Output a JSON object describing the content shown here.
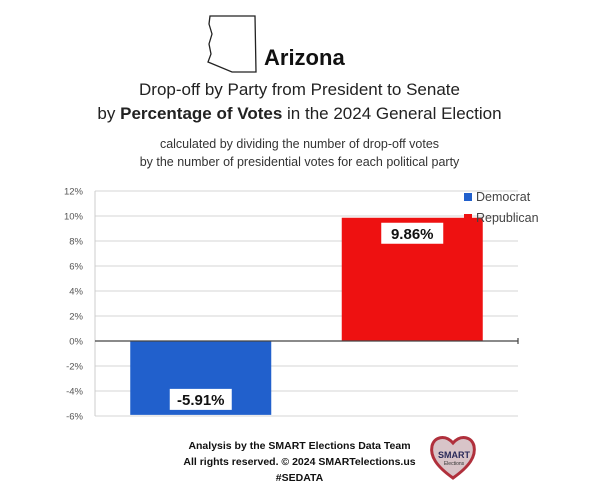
{
  "header": {
    "state": "Arizona",
    "title_line1": "Drop-off by Party from President to Senate",
    "title_line2_prefix": "by ",
    "title_line2_bold": "Percentage of Votes",
    "title_line2_suffix": " in the 2024 General Election",
    "subtitle_line1": "calculated by dividing the number of drop-off votes",
    "subtitle_line2": "by the number of presidential votes for each political party"
  },
  "chart_data": {
    "type": "bar",
    "categories": [
      "Democrat",
      "Republican"
    ],
    "values": [
      -5.91,
      9.86
    ],
    "data_labels": [
      "-5.91%",
      "9.86%"
    ],
    "colors": [
      "#2160cc",
      "#ee1111"
    ],
    "ylim": [
      -6,
      12
    ],
    "yticks": [
      -6,
      -4,
      -2,
      0,
      2,
      4,
      6,
      8,
      10,
      12
    ],
    "ytick_labels": [
      "-6%",
      "-4%",
      "-2%",
      "0%",
      "2%",
      "4%",
      "6%",
      "8%",
      "10%",
      "12%"
    ],
    "grid": true,
    "legend_position": "top-right",
    "legend": [
      "Democrat",
      "Republican"
    ]
  },
  "footer": {
    "line1": "Analysis by the SMART Elections Data Team",
    "line2": "All rights reserved. © 2024 SMARTelections.us",
    "line3": "#SEDATA",
    "logo_text1": "SMART",
    "logo_text2": "Elections"
  }
}
